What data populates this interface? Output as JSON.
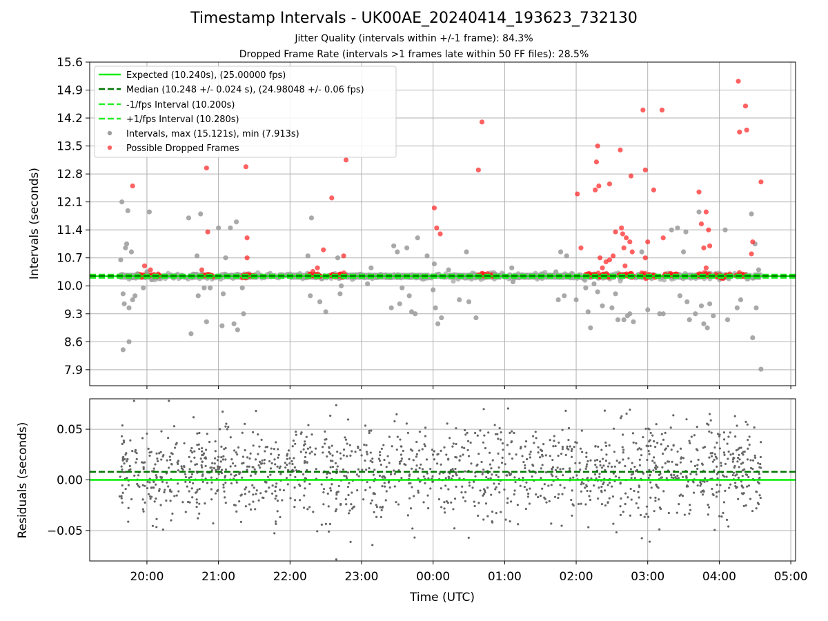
{
  "title": "Timestamp Intervals - UK00AE_20240414_193623_732130",
  "subtitle_jitter": "Jitter Quality (intervals within +/-1 frame): 84.3%",
  "subtitle_dropped": "Dropped Frame Rate (intervals >1 frames late within 50 FF files): 28.5%",
  "colors": {
    "expected": "#00ee00",
    "median": "#007700",
    "interval_band": "#22ee22",
    "intervals": "#a0a0a0",
    "dropped": "#ff2020",
    "residuals": "#666666",
    "grid": "#b0b0b0"
  },
  "chart_data": [
    {
      "type": "scatter",
      "panel": "intervals",
      "ylabel": "Intervals (seconds)",
      "xlim": [
        "19:12",
        "05:04"
      ],
      "ylim": [
        7.5,
        15.6
      ],
      "yticks": [
        "7.9",
        "8.6",
        "9.3",
        "10.0",
        "10.7",
        "11.4",
        "12.1",
        "12.8",
        "13.5",
        "14.2",
        "14.9",
        "15.6"
      ],
      "xticks": [
        "20:00",
        "21:00",
        "22:00",
        "23:00",
        "00:00",
        "01:00",
        "02:00",
        "03:00",
        "04:00",
        "05:00"
      ],
      "grid": true,
      "legend_position": "top-left",
      "legend": [
        "Expected (10.240s), (25.00000 fps)",
        "Median (10.248 +/- 0.024 s), (24.98048 +/- 0.06 fps)",
        "-1/fps Interval (10.200s)",
        "+1/fps Interval (10.280s)",
        "Intervals, max (15.121s), min (7.913s)",
        "Possible Dropped Frames"
      ],
      "lines": {
        "expected": 10.24,
        "median": 10.248,
        "minus_interval": 10.2,
        "plus_interval": 10.28
      },
      "band_segments": [
        [
          "19:37",
          "20:07"
        ],
        [
          "20:37",
          "20:52"
        ],
        [
          "21:10",
          "21:27"
        ],
        [
          "22:00",
          "22:22"
        ],
        [
          "22:40",
          "23:57"
        ],
        [
          "00:13",
          "00:57"
        ],
        [
          "01:07",
          "01:57"
        ],
        [
          "02:20",
          "02:33"
        ],
        [
          "02:50",
          "02:58"
        ],
        [
          "03:30",
          "03:45"
        ],
        [
          "03:57",
          "04:07"
        ],
        [
          "04:30",
          "04:35"
        ]
      ],
      "dropped_clusters": [
        [
          "19:52",
          "20:11"
        ],
        [
          "20:47",
          "20:56"
        ],
        [
          "21:20",
          "21:30"
        ],
        [
          "22:15",
          "22:26"
        ],
        [
          "22:34",
          "22:47"
        ],
        [
          "00:38",
          "00:52"
        ],
        [
          "02:08",
          "02:28"
        ],
        [
          "02:36",
          "02:48"
        ],
        [
          "02:55",
          "03:07"
        ],
        [
          "03:14",
          "03:25"
        ],
        [
          "03:42",
          "03:52"
        ],
        [
          "03:57",
          "04:09"
        ],
        [
          "04:14",
          "04:22"
        ]
      ],
      "intervals_outliers": [
        [
          "19:38",
          10.65
        ],
        [
          "19:39",
          12.1
        ],
        [
          "19:40",
          9.8
        ],
        [
          "19:40",
          8.4
        ],
        [
          "19:41",
          9.55
        ],
        [
          "19:42",
          10.95
        ],
        [
          "19:43",
          11.05
        ],
        [
          "19:44",
          11.88
        ],
        [
          "19:45",
          9.45
        ],
        [
          "19:45",
          8.6
        ],
        [
          "19:47",
          10.85
        ],
        [
          "19:48",
          9.65
        ],
        [
          "19:50",
          9.75
        ],
        [
          "19:52",
          10.3
        ],
        [
          "19:57",
          9.95
        ],
        [
          "20:00",
          10.35
        ],
        [
          "20:02",
          11.85
        ],
        [
          "20:04",
          10.15
        ],
        [
          "20:35",
          11.7
        ],
        [
          "20:37",
          8.8
        ],
        [
          "20:42",
          10.75
        ],
        [
          "20:43",
          9.75
        ],
        [
          "20:45",
          11.8
        ],
        [
          "20:48",
          9.95
        ],
        [
          "20:50",
          9.1
        ],
        [
          "20:53",
          9.95
        ],
        [
          "21:00",
          11.45
        ],
        [
          "21:03",
          9.0
        ],
        [
          "21:04",
          9.8
        ],
        [
          "21:06",
          10.7
        ],
        [
          "21:10",
          11.45
        ],
        [
          "21:13",
          9.05
        ],
        [
          "21:15",
          11.6
        ],
        [
          "21:16",
          8.9
        ],
        [
          "21:20",
          9.95
        ],
        [
          "21:21",
          9.3
        ],
        [
          "22:15",
          10.75
        ],
        [
          "22:17",
          9.75
        ],
        [
          "22:18",
          11.7
        ],
        [
          "22:25",
          9.6
        ],
        [
          "22:30",
          9.35
        ],
        [
          "22:40",
          10.7
        ],
        [
          "22:42",
          9.8
        ],
        [
          "22:43",
          10.0
        ],
        [
          "23:05",
          10.05
        ],
        [
          "23:08",
          10.45
        ],
        [
          "23:25",
          9.45
        ],
        [
          "23:27",
          11.0
        ],
        [
          "23:30",
          10.85
        ],
        [
          "23:32",
          9.55
        ],
        [
          "23:34",
          9.95
        ],
        [
          "23:38",
          10.95
        ],
        [
          "23:40",
          9.75
        ],
        [
          "23:42",
          9.35
        ],
        [
          "23:45",
          9.3
        ],
        [
          "23:47",
          11.2
        ],
        [
          "23:55",
          10.75
        ],
        [
          "00:00",
          9.9
        ],
        [
          "00:01",
          10.55
        ],
        [
          "00:02",
          9.45
        ],
        [
          "00:04",
          9.05
        ],
        [
          "00:07",
          9.2
        ],
        [
          "00:13",
          10.4
        ],
        [
          "00:22",
          9.65
        ],
        [
          "00:28",
          10.85
        ],
        [
          "00:30",
          9.6
        ],
        [
          "00:36",
          9.2
        ],
        [
          "00:52",
          10.3
        ],
        [
          "01:06",
          10.45
        ],
        [
          "01:07",
          10.1
        ],
        [
          "01:12",
          10.2
        ],
        [
          "01:43",
          10.35
        ],
        [
          "01:45",
          9.65
        ],
        [
          "01:47",
          10.85
        ],
        [
          "01:50",
          9.75
        ],
        [
          "01:52",
          10.75
        ],
        [
          "02:00",
          9.65
        ],
        [
          "02:02",
          10.25
        ],
        [
          "02:08",
          9.95
        ],
        [
          "02:10",
          9.35
        ],
        [
          "02:12",
          8.95
        ],
        [
          "02:15",
          10.05
        ],
        [
          "02:18",
          9.85
        ],
        [
          "02:22",
          9.5
        ],
        [
          "02:30",
          9.45
        ],
        [
          "02:33",
          9.8
        ],
        [
          "02:35",
          9.15
        ],
        [
          "02:40",
          9.15
        ],
        [
          "02:43",
          9.25
        ],
        [
          "02:45",
          9.3
        ],
        [
          "02:48",
          9.1
        ],
        [
          "02:55",
          10.85
        ],
        [
          "03:00",
          9.4
        ],
        [
          "03:10",
          9.3
        ],
        [
          "03:13",
          9.3
        ],
        [
          "03:20",
          11.4
        ],
        [
          "03:25",
          11.45
        ],
        [
          "03:27",
          9.75
        ],
        [
          "03:30",
          10.85
        ],
        [
          "03:32",
          11.35
        ],
        [
          "03:33",
          9.6
        ],
        [
          "03:35",
          9.15
        ],
        [
          "03:40",
          9.3
        ],
        [
          "03:43",
          11.85
        ],
        [
          "03:45",
          9.5
        ],
        [
          "03:47",
          9.05
        ],
        [
          "03:50",
          8.95
        ],
        [
          "03:52",
          9.55
        ],
        [
          "03:55",
          9.25
        ],
        [
          "04:05",
          11.4
        ],
        [
          "04:07",
          9.15
        ],
        [
          "04:15",
          9.45
        ],
        [
          "04:18",
          9.65
        ],
        [
          "04:27",
          11.8
        ],
        [
          "04:28",
          8.7
        ],
        [
          "04:30",
          11.05
        ],
        [
          "04:31",
          9.45
        ],
        [
          "04:33",
          10.4
        ],
        [
          "04:35",
          7.913
        ]
      ],
      "dropped_outliers": [
        [
          "19:48",
          12.5
        ],
        [
          "19:58",
          10.5
        ],
        [
          "20:03",
          10.4
        ],
        [
          "20:50",
          12.95
        ],
        [
          "20:51",
          11.35
        ],
        [
          "20:46",
          10.4
        ],
        [
          "21:23",
          12.98
        ],
        [
          "21:24",
          11.2
        ],
        [
          "21:24",
          10.7
        ],
        [
          "22:23",
          10.45
        ],
        [
          "22:28",
          10.9
        ],
        [
          "22:35",
          12.2
        ],
        [
          "22:45",
          10.75
        ],
        [
          "22:47",
          13.15
        ],
        [
          "00:01",
          11.95
        ],
        [
          "00:03",
          11.45
        ],
        [
          "00:06",
          11.3
        ],
        [
          "00:38",
          12.9
        ],
        [
          "00:41",
          14.1
        ],
        [
          "02:01",
          12.3
        ],
        [
          "02:04",
          10.95
        ],
        [
          "02:16",
          12.4
        ],
        [
          "02:17",
          13.1
        ],
        [
          "02:18",
          13.5
        ],
        [
          "02:19",
          12.5
        ],
        [
          "02:20",
          10.7
        ],
        [
          "02:22",
          10.45
        ],
        [
          "02:28",
          12.55
        ],
        [
          "02:25",
          10.6
        ],
        [
          "02:28",
          10.65
        ],
        [
          "02:31",
          10.75
        ],
        [
          "02:33",
          11.35
        ],
        [
          "02:37",
          13.4
        ],
        [
          "02:38",
          11.45
        ],
        [
          "02:39",
          11.3
        ],
        [
          "02:40",
          10.95
        ],
        [
          "02:41",
          10.5
        ],
        [
          "02:42",
          11.2
        ],
        [
          "02:45",
          11.1
        ],
        [
          "02:46",
          12.75
        ],
        [
          "02:47",
          10.85
        ],
        [
          "02:56",
          14.4
        ],
        [
          "02:58",
          12.9
        ],
        [
          "03:00",
          11.1
        ],
        [
          "02:58",
          10.7
        ],
        [
          "03:05",
          12.4
        ],
        [
          "03:12",
          14.4
        ],
        [
          "03:13",
          11.2
        ],
        [
          "03:43",
          12.35
        ],
        [
          "03:45",
          11.55
        ],
        [
          "03:47",
          10.95
        ],
        [
          "03:49",
          11.85
        ],
        [
          "03:49",
          10.45
        ],
        [
          "03:51",
          11.4
        ],
        [
          "03:52",
          11.0
        ],
        [
          "04:16",
          15.121
        ],
        [
          "04:17",
          13.85
        ],
        [
          "04:22",
          14.5
        ],
        [
          "04:23",
          13.9
        ],
        [
          "04:27",
          10.8
        ],
        [
          "04:28",
          11.1
        ],
        [
          "04:35",
          12.6
        ]
      ]
    },
    {
      "type": "scatter",
      "panel": "residuals",
      "xlabel": "Time (UTC)",
      "ylabel": "Residuals (seconds)",
      "xlim": [
        "19:12",
        "05:04"
      ],
      "ylim": [
        -0.08,
        0.08
      ],
      "yticks": [
        "−0.05",
        "0.00",
        "0.05"
      ],
      "ytick_values": [
        -0.05,
        0.0,
        0.05
      ],
      "xticks": [
        "20:00",
        "21:00",
        "22:00",
        "23:00",
        "00:00",
        "01:00",
        "02:00",
        "03:00",
        "04:00",
        "05:00"
      ],
      "grid": true,
      "lines": {
        "expected": 0.0,
        "median": 0.008
      },
      "range": [
        "19:37",
        "04:35"
      ],
      "approx_points": 1500,
      "spread_sd": 0.023
    }
  ]
}
